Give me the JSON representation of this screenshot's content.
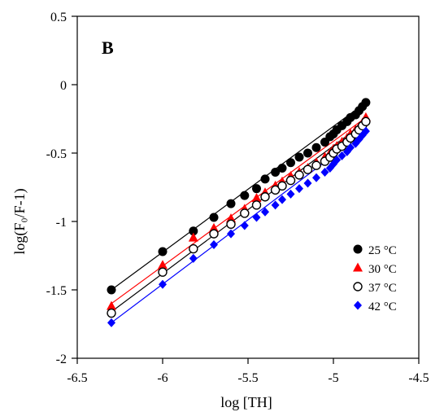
{
  "chart_data": {
    "type": "scatter",
    "panel_label": "B",
    "xlabel": "log [TH]",
    "ylabel": "log(F₀/F-1)",
    "xlim": [
      -6.5,
      -4.5
    ],
    "ylim": [
      -2,
      0.5
    ],
    "xticks": [
      -6.5,
      -6,
      -5.5,
      -5,
      -4.5
    ],
    "yticks": [
      0.5,
      0,
      -0.5,
      -1,
      -1.5,
      -2
    ],
    "xtick_labels": [
      "-6.5",
      "-6",
      "-5.5",
      "-5",
      "-4.5"
    ],
    "ytick_labels": [
      "0.5",
      "0",
      "-0.5",
      "-1",
      "-1.5",
      "-2"
    ],
    "grid": false,
    "legend_position": "bottom-right",
    "series": [
      {
        "name": "25 °C",
        "color": "#000000",
        "marker": "filled-circle",
        "x": [
          -6.3,
          -6.0,
          -5.82,
          -5.7,
          -5.6,
          -5.52,
          -5.45,
          -5.4,
          -5.34,
          -5.3,
          -5.25,
          -5.2,
          -5.15,
          -5.1,
          -5.05,
          -5.02,
          -5.0,
          -4.98,
          -4.95,
          -4.92,
          -4.9,
          -4.87,
          -4.85,
          -4.83,
          -4.81
        ],
        "y": [
          -1.5,
          -1.22,
          -1.07,
          -0.97,
          -0.87,
          -0.81,
          -0.76,
          -0.69,
          -0.64,
          -0.61,
          -0.57,
          -0.53,
          -0.5,
          -0.46,
          -0.42,
          -0.38,
          -0.36,
          -0.33,
          -0.3,
          -0.27,
          -0.24,
          -0.22,
          -0.19,
          -0.16,
          -0.13
        ]
      },
      {
        "name": "30 °C",
        "color": "#ff0000",
        "marker": "filled-triangle",
        "x": [
          -6.3,
          -6.0,
          -5.82,
          -5.7,
          -5.6,
          -5.52,
          -5.45,
          -5.4,
          -5.34,
          -5.3,
          -5.25,
          -5.2,
          -5.15,
          -5.1,
          -5.05,
          -5.02,
          -5.0,
          -4.98,
          -4.95,
          -4.92,
          -4.9,
          -4.87,
          -4.85,
          -4.83,
          -4.81
        ],
        "y": [
          -1.62,
          -1.32,
          -1.12,
          -1.05,
          -0.98,
          -0.91,
          -0.83,
          -0.79,
          -0.74,
          -0.71,
          -0.67,
          -0.64,
          -0.61,
          -0.57,
          -0.53,
          -0.5,
          -0.47,
          -0.45,
          -0.42,
          -0.39,
          -0.36,
          -0.33,
          -0.31,
          -0.28,
          -0.24
        ]
      },
      {
        "name": "37 °C",
        "color": "#000000",
        "marker": "open-circle",
        "x": [
          -6.3,
          -6.0,
          -5.82,
          -5.7,
          -5.6,
          -5.52,
          -5.45,
          -5.4,
          -5.34,
          -5.3,
          -5.25,
          -5.2,
          -5.15,
          -5.1,
          -5.05,
          -5.02,
          -5.0,
          -4.98,
          -4.95,
          -4.92,
          -4.9,
          -4.87,
          -4.85,
          -4.83,
          -4.81
        ],
        "y": [
          -1.67,
          -1.37,
          -1.2,
          -1.09,
          -1.02,
          -0.94,
          -0.88,
          -0.82,
          -0.77,
          -0.74,
          -0.7,
          -0.66,
          -0.62,
          -0.59,
          -0.56,
          -0.53,
          -0.5,
          -0.47,
          -0.45,
          -0.42,
          -0.39,
          -0.36,
          -0.33,
          -0.3,
          -0.27
        ]
      },
      {
        "name": "42 °C",
        "color": "#0000ff",
        "marker": "filled-diamond",
        "x": [
          -6.3,
          -6.0,
          -5.82,
          -5.7,
          -5.6,
          -5.52,
          -5.45,
          -5.4,
          -5.34,
          -5.3,
          -5.25,
          -5.2,
          -5.15,
          -5.1,
          -5.05,
          -5.02,
          -5.0,
          -4.98,
          -4.95,
          -4.92,
          -4.9,
          -4.87,
          -4.85,
          -4.83,
          -4.81
        ],
        "y": [
          -1.74,
          -1.46,
          -1.27,
          -1.17,
          -1.09,
          -1.03,
          -0.97,
          -0.93,
          -0.88,
          -0.84,
          -0.8,
          -0.76,
          -0.72,
          -0.68,
          -0.64,
          -0.61,
          -0.58,
          -0.55,
          -0.52,
          -0.49,
          -0.46,
          -0.43,
          -0.4,
          -0.37,
          -0.34
        ]
      }
    ],
    "fit_lines": [
      {
        "series": "25 °C",
        "color": "#000000",
        "x": [
          -6.3,
          -4.81
        ],
        "y": [
          -1.5,
          -0.13
        ]
      },
      {
        "series": "30 °C",
        "color": "#ff0000",
        "x": [
          -6.3,
          -4.81
        ],
        "y": [
          -1.6,
          -0.24
        ]
      },
      {
        "series": "37 °C",
        "color": "#000000",
        "x": [
          -6.3,
          -4.81
        ],
        "y": [
          -1.66,
          -0.27
        ]
      },
      {
        "series": "42 °C",
        "color": "#0000ff",
        "x": [
          -6.3,
          -4.81
        ],
        "y": [
          -1.74,
          -0.34
        ]
      }
    ]
  }
}
